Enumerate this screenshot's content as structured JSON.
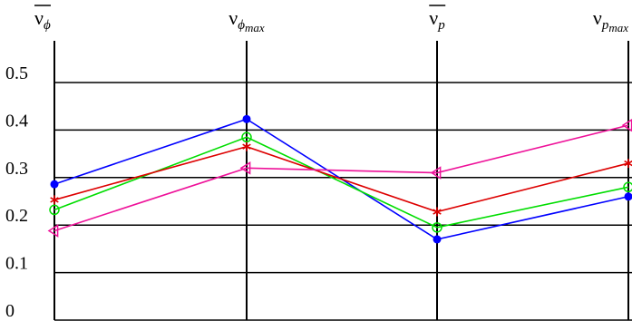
{
  "chart_data": {
    "type": "line",
    "categories": [
      "ν̅ϕ",
      "νϕmax",
      "ν̅p",
      "νpmax"
    ],
    "category_labels": [
      {
        "main": "ν",
        "overline": true,
        "sub": "ϕ",
        "subsub": ""
      },
      {
        "main": "ν",
        "overline": false,
        "sub": "ϕ",
        "subsub": "max"
      },
      {
        "main": "ν",
        "overline": true,
        "sub": "p",
        "subsub": ""
      },
      {
        "main": "ν",
        "overline": false,
        "sub": "p",
        "subsub": "max"
      }
    ],
    "yticks": [
      "0",
      "0.1",
      "0.2",
      "0.3",
      "0.4",
      "0.5"
    ],
    "ylim": [
      0,
      0.5
    ],
    "grid": true,
    "series": [
      {
        "color": "#0000ff",
        "marker": "filled-circle",
        "values": [
          0.286,
          0.423,
          0.17,
          0.26
        ]
      },
      {
        "color": "#00dd00",
        "marker": "open-circle",
        "values": [
          0.232,
          0.385,
          0.195,
          0.28
        ]
      },
      {
        "color": "#dd0000",
        "marker": "star",
        "values": [
          0.253,
          0.365,
          0.228,
          0.33
        ]
      },
      {
        "color": "#ee1199",
        "marker": "open-triangle-left",
        "values": [
          0.188,
          0.32,
          0.31,
          0.41
        ]
      }
    ]
  }
}
